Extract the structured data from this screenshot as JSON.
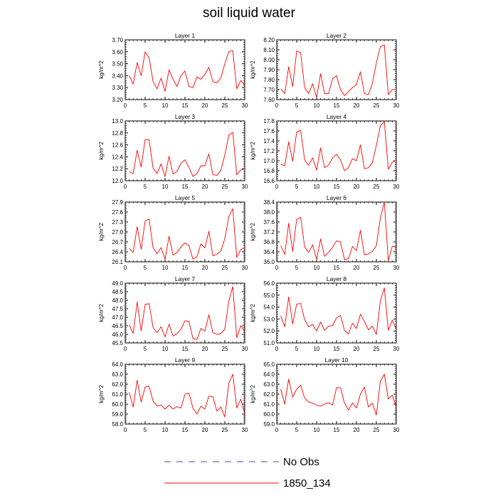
{
  "title": "soil liquid water",
  "legend": [
    {
      "label": "No Obs",
      "color": "#4a4a9a",
      "style": "dashed"
    },
    {
      "label": "1850_134",
      "color": "#ff0000",
      "style": "solid"
    }
  ],
  "chart_data": [
    {
      "type": "line",
      "title": "Layer 1",
      "ylabel": "kg/m^2",
      "xlim": [
        0,
        30
      ],
      "ylim": [
        3.2,
        3.7
      ],
      "xticks": [
        "0",
        "5",
        "10",
        "15",
        "20",
        "25",
        "30"
      ],
      "yticks": [
        "3.20",
        "3.30",
        "3.40",
        "3.50",
        "3.60",
        "3.70"
      ],
      "series": [
        {
          "name": "1850_134",
          "color": "#ff0000",
          "x": [
            1,
            2,
            3,
            4,
            5,
            6,
            7,
            8,
            9,
            10,
            11,
            12,
            13,
            14,
            15,
            16,
            17,
            18,
            19,
            20,
            21,
            22,
            23,
            24,
            25,
            26,
            27,
            28,
            29,
            30
          ],
          "values": [
            3.4,
            3.33,
            3.51,
            3.4,
            3.6,
            3.55,
            3.35,
            3.29,
            3.38,
            3.27,
            3.45,
            3.37,
            3.31,
            3.4,
            3.44,
            3.31,
            3.3,
            3.39,
            3.37,
            3.41,
            3.47,
            3.35,
            3.34,
            3.38,
            3.5,
            3.6,
            3.61,
            3.29,
            3.36,
            3.32
          ]
        }
      ]
    },
    {
      "type": "line",
      "title": "Layer 2",
      "ylabel": "kg/m^2",
      "xlim": [
        0,
        30
      ],
      "ylim": [
        7.6,
        8.2
      ],
      "xticks": [
        "0",
        "5",
        "10",
        "15",
        "20",
        "25",
        "30"
      ],
      "yticks": [
        "7.60",
        "7.70",
        "7.80",
        "7.90",
        "8.00",
        "8.10",
        "8.20"
      ],
      "series": [
        {
          "name": "1850_134",
          "color": "#ff0000",
          "x": [
            1,
            2,
            3,
            4,
            5,
            6,
            7,
            8,
            9,
            10,
            11,
            12,
            13,
            14,
            15,
            16,
            17,
            18,
            19,
            20,
            21,
            22,
            23,
            24,
            25,
            26,
            27,
            28,
            29,
            30
          ],
          "values": [
            7.71,
            7.66,
            7.93,
            7.73,
            8.09,
            8.07,
            7.72,
            7.66,
            7.76,
            7.62,
            7.86,
            7.66,
            7.66,
            7.81,
            7.84,
            7.7,
            7.64,
            7.68,
            7.72,
            7.75,
            7.88,
            7.66,
            7.65,
            7.76,
            7.97,
            8.13,
            8.15,
            7.65,
            7.7,
            7.7
          ]
        }
      ]
    },
    {
      "type": "line",
      "title": "Layer 3",
      "ylabel": "kg/m^2",
      "xlim": [
        0,
        30
      ],
      "ylim": [
        12.0,
        13.0
      ],
      "xticks": [
        "0",
        "5",
        "10",
        "15",
        "20",
        "25",
        "30"
      ],
      "yticks": [
        "12.0",
        "12.2",
        "12.4",
        "12.6",
        "12.8",
        "13.0"
      ],
      "series": [
        {
          "name": "1850_134",
          "color": "#ff0000",
          "x": [
            1,
            2,
            3,
            4,
            5,
            6,
            7,
            8,
            9,
            10,
            11,
            12,
            13,
            14,
            15,
            16,
            17,
            18,
            19,
            20,
            21,
            22,
            23,
            24,
            25,
            26,
            27,
            28,
            29,
            30
          ],
          "values": [
            12.15,
            12.12,
            12.51,
            12.23,
            12.69,
            12.68,
            12.21,
            12.12,
            12.28,
            12.07,
            12.41,
            12.11,
            12.16,
            12.29,
            12.35,
            12.22,
            12.07,
            12.12,
            12.25,
            12.25,
            12.45,
            12.1,
            12.09,
            12.17,
            12.43,
            12.76,
            12.81,
            12.1,
            12.18,
            12.2
          ]
        }
      ]
    },
    {
      "type": "line",
      "title": "Layer 4",
      "ylabel": "kg/m^2",
      "xlim": [
        0,
        30
      ],
      "ylim": [
        16.6,
        17.8
      ],
      "xticks": [
        "0",
        "5",
        "10",
        "15",
        "20",
        "25",
        "30"
      ],
      "yticks": [
        "16.6",
        "16.8",
        "17.0",
        "17.2",
        "17.4",
        "17.6",
        "17.8"
      ],
      "series": [
        {
          "name": "1850_134",
          "color": "#ff0000",
          "x": [
            1,
            2,
            3,
            4,
            5,
            6,
            7,
            8,
            9,
            10,
            11,
            12,
            13,
            14,
            15,
            16,
            17,
            18,
            19,
            20,
            21,
            22,
            23,
            24,
            25,
            26,
            27,
            28,
            29,
            30
          ],
          "values": [
            16.93,
            16.9,
            17.38,
            16.99,
            17.58,
            17.61,
            17.02,
            16.91,
            17.06,
            16.81,
            17.26,
            16.86,
            16.91,
            17.06,
            17.13,
            17.02,
            16.8,
            16.86,
            17.04,
            17.0,
            17.32,
            16.84,
            16.86,
            16.96,
            17.31,
            17.7,
            17.79,
            16.83,
            16.97,
            17.01
          ]
        }
      ]
    },
    {
      "type": "line",
      "title": "Layer 5",
      "ylabel": "kg/m^2",
      "xlim": [
        0,
        30
      ],
      "ylim": [
        26.1,
        27.9
      ],
      "xticks": [
        "0",
        "5",
        "10",
        "15",
        "20",
        "25",
        "30"
      ],
      "yticks": [
        "26.1",
        "26.4",
        "26.7",
        "27.0",
        "27.3",
        "27.6",
        "27.9"
      ],
      "series": [
        {
          "name": "1850_134",
          "color": "#ff0000",
          "x": [
            1,
            2,
            3,
            4,
            5,
            6,
            7,
            8,
            9,
            10,
            11,
            12,
            13,
            14,
            15,
            16,
            17,
            18,
            19,
            20,
            21,
            22,
            23,
            24,
            25,
            26,
            27,
            28,
            29,
            30
          ],
          "values": [
            26.5,
            26.38,
            27.16,
            26.48,
            27.33,
            27.39,
            26.52,
            26.34,
            26.53,
            26.18,
            26.87,
            26.3,
            26.38,
            26.55,
            26.67,
            26.58,
            26.18,
            26.25,
            26.64,
            26.52,
            27.02,
            26.28,
            26.33,
            26.42,
            26.8,
            27.46,
            27.7,
            26.23,
            26.47,
            26.53
          ]
        }
      ]
    },
    {
      "type": "line",
      "title": "Layer 6",
      "ylabel": "kg/m^2",
      "xlim": [
        0,
        30
      ],
      "ylim": [
        36.0,
        38.4
      ],
      "xticks": [
        "0",
        "5",
        "10",
        "15",
        "20",
        "25",
        "30"
      ],
      "yticks": [
        "36.0",
        "36.4",
        "36.8",
        "37.2",
        "37.6",
        "38.0",
        "38.4"
      ],
      "series": [
        {
          "name": "1850_134",
          "color": "#ff0000",
          "x": [
            1,
            2,
            3,
            4,
            5,
            6,
            7,
            8,
            9,
            10,
            11,
            12,
            13,
            14,
            15,
            16,
            17,
            18,
            19,
            20,
            21,
            22,
            23,
            24,
            25,
            26,
            27,
            28,
            29,
            30
          ],
          "values": [
            36.65,
            36.3,
            37.55,
            36.42,
            37.7,
            37.78,
            36.6,
            36.38,
            36.68,
            36.1,
            36.92,
            36.22,
            36.38,
            36.58,
            36.84,
            36.8,
            36.1,
            36.12,
            36.62,
            36.45,
            37.27,
            36.28,
            36.32,
            36.42,
            36.65,
            37.76,
            38.4,
            36.05,
            36.62,
            36.6
          ]
        }
      ]
    },
    {
      "type": "line",
      "title": "Layer 7",
      "ylabel": "kg/m^2",
      "xlim": [
        0,
        30
      ],
      "ylim": [
        45.5,
        49.0
      ],
      "xticks": [
        "0",
        "5",
        "10",
        "15",
        "20",
        "25",
        "30"
      ],
      "yticks": [
        "45.5",
        "46.0",
        "46.5",
        "47.0",
        "47.5",
        "48.0",
        "48.5",
        "49.0"
      ],
      "series": [
        {
          "name": "1850_134",
          "color": "#ff0000",
          "x": [
            1,
            2,
            3,
            4,
            5,
            6,
            7,
            8,
            9,
            10,
            11,
            12,
            13,
            14,
            15,
            16,
            17,
            18,
            19,
            20,
            21,
            22,
            23,
            24,
            25,
            26,
            27,
            28,
            29,
            30
          ],
          "values": [
            46.55,
            46.05,
            47.9,
            46.2,
            47.75,
            47.8,
            46.4,
            46.1,
            46.45,
            45.85,
            46.6,
            45.9,
            46.05,
            46.3,
            46.8,
            46.75,
            45.75,
            45.7,
            46.35,
            46.2,
            47.15,
            46.1,
            46.0,
            46.05,
            46.3,
            47.95,
            48.8,
            45.8,
            46.5,
            46.2
          ]
        }
      ]
    },
    {
      "type": "line",
      "title": "Layer 8",
      "ylabel": "kg/m^2",
      "xlim": [
        0,
        30
      ],
      "ylim": [
        51.0,
        56.0
      ],
      "xticks": [
        "0",
        "5",
        "10",
        "15",
        "20",
        "25",
        "30"
      ],
      "yticks": [
        "51.0",
        "52.0",
        "53.0",
        "54.0",
        "55.0",
        "56.0"
      ],
      "series": [
        {
          "name": "1850_134",
          "color": "#ff0000",
          "x": [
            1,
            2,
            3,
            4,
            5,
            6,
            7,
            8,
            9,
            10,
            11,
            12,
            13,
            14,
            15,
            16,
            17,
            18,
            19,
            20,
            21,
            22,
            23,
            24,
            25,
            26,
            27,
            28,
            29,
            30
          ],
          "values": [
            53.25,
            52.35,
            54.85,
            52.6,
            54.25,
            54.3,
            52.95,
            52.35,
            52.55,
            52.0,
            52.75,
            52.05,
            52.4,
            52.45,
            53.1,
            53.3,
            52.05,
            51.75,
            52.65,
            52.2,
            53.4,
            52.8,
            52.1,
            52.4,
            51.7,
            54.5,
            55.6,
            52.05,
            52.9,
            52.15
          ]
        }
      ]
    },
    {
      "type": "line",
      "title": "Layer 9",
      "ylabel": "kg/m^2",
      "xlim": [
        0,
        30
      ],
      "ylim": [
        58.0,
        64.0
      ],
      "xticks": [
        "0",
        "5",
        "10",
        "15",
        "20",
        "25",
        "30"
      ],
      "yticks": [
        "58.0",
        "59.0",
        "60.0",
        "61.0",
        "62.0",
        "63.0",
        "64.0"
      ],
      "series": [
        {
          "name": "1850_134",
          "color": "#ff0000",
          "x": [
            1,
            2,
            3,
            4,
            5,
            6,
            7,
            8,
            9,
            10,
            11,
            12,
            13,
            14,
            15,
            16,
            17,
            18,
            19,
            20,
            21,
            22,
            23,
            24,
            25,
            26,
            27,
            28,
            29,
            30
          ],
          "values": [
            61.2,
            59.7,
            62.4,
            60.2,
            61.7,
            61.8,
            60.3,
            59.8,
            59.9,
            59.5,
            59.9,
            59.5,
            59.75,
            59.6,
            61.0,
            61.1,
            59.6,
            59.0,
            59.8,
            59.5,
            60.8,
            60.75,
            59.3,
            59.7,
            58.7,
            62.1,
            63.0,
            59.6,
            60.5,
            59.1
          ]
        }
      ]
    },
    {
      "type": "line",
      "title": "Layer 10",
      "ylabel": "kg/m^2",
      "xlim": [
        0,
        30
      ],
      "ylim": [
        59.0,
        65.0
      ],
      "xticks": [
        "0",
        "5",
        "10",
        "15",
        "20",
        "25",
        "30"
      ],
      "yticks": [
        "59.0",
        "60.0",
        "61.0",
        "62.0",
        "63.0",
        "64.0",
        "65.0"
      ],
      "series": [
        {
          "name": "1850_134",
          "color": "#ff0000",
          "x": [
            1,
            2,
            3,
            4,
            5,
            6,
            7,
            8,
            9,
            10,
            11,
            12,
            13,
            14,
            15,
            16,
            17,
            18,
            19,
            20,
            21,
            22,
            23,
            24,
            25,
            26,
            27,
            28,
            29,
            30
          ],
          "values": [
            62.5,
            61.0,
            63.5,
            61.7,
            62.5,
            62.9,
            61.6,
            61.2,
            61.1,
            60.9,
            60.8,
            61.0,
            61.15,
            60.9,
            62.65,
            62.65,
            61.1,
            60.4,
            61.1,
            60.6,
            62.0,
            62.7,
            60.7,
            61.1,
            59.9,
            63.3,
            64.0,
            61.5,
            61.9,
            60.7
          ]
        }
      ]
    }
  ]
}
